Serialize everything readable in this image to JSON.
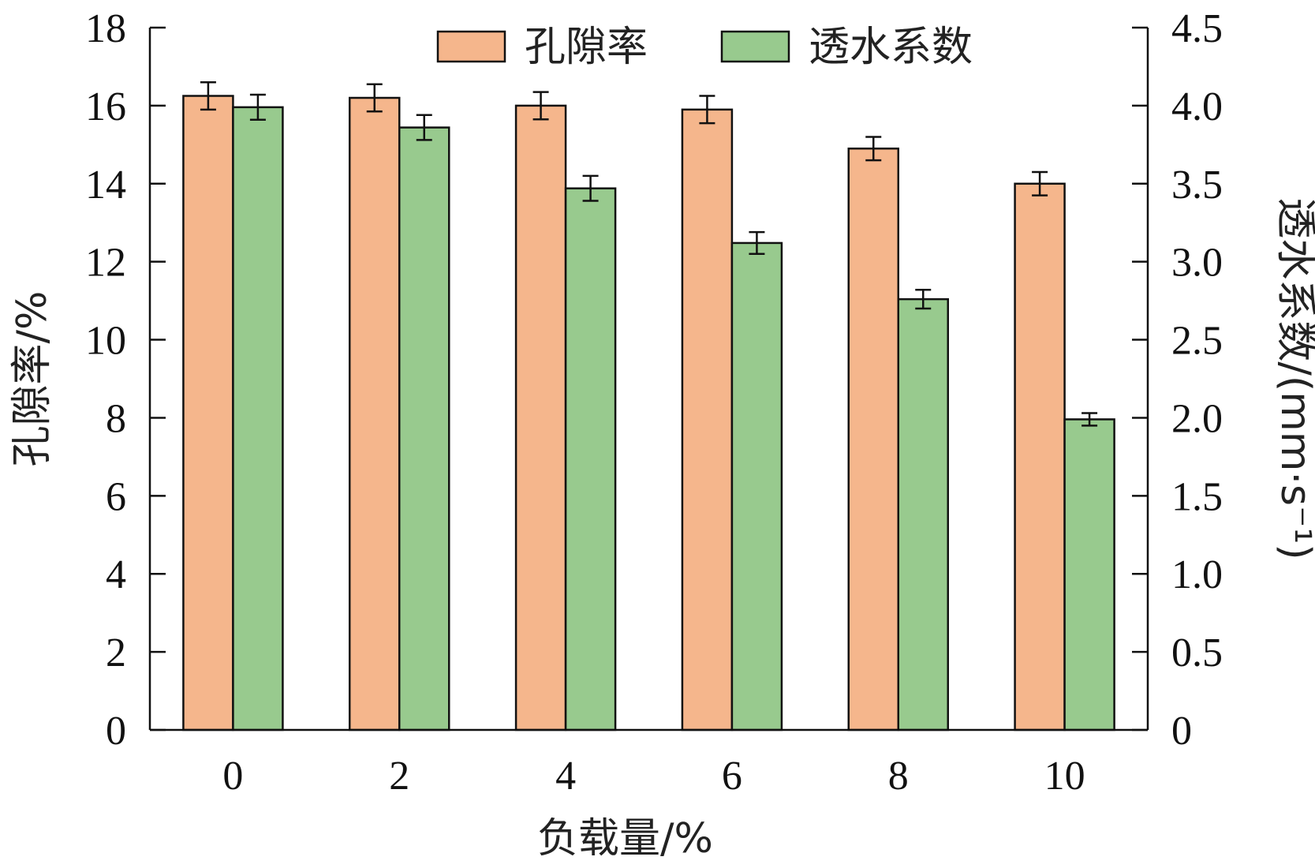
{
  "chart_data": {
    "type": "bar",
    "categories": [
      "0",
      "2",
      "4",
      "6",
      "8",
      "10"
    ],
    "xlabel": "负载量/%",
    "y_left": {
      "label": "孔隙率/%",
      "ylim": [
        0,
        18
      ],
      "ticks": [
        "0",
        "2",
        "4",
        "6",
        "8",
        "10",
        "12",
        "14",
        "16",
        "18"
      ]
    },
    "y_right": {
      "label": "透水系数/(mm·s⁻¹)",
      "ylim": [
        0,
        4.5
      ],
      "ticks": [
        "0",
        "0.5",
        "1.0",
        "1.5",
        "2.0",
        "2.5",
        "3.0",
        "3.5",
        "4.0",
        "4.5"
      ]
    },
    "series": [
      {
        "name": "孔隙率",
        "axis": "left",
        "color": "#F5B68C",
        "values": [
          16.25,
          16.2,
          16.0,
          15.9,
          14.9,
          14.0
        ],
        "errors": [
          0.35,
          0.35,
          0.35,
          0.35,
          0.3,
          0.3
        ]
      },
      {
        "name": "透水系数",
        "axis": "right",
        "color": "#98CA8E",
        "values": [
          3.99,
          3.86,
          3.47,
          3.12,
          2.76,
          1.99
        ],
        "errors": [
          0.08,
          0.08,
          0.08,
          0.07,
          0.06,
          0.04
        ]
      }
    ],
    "legend_position": "top-center",
    "grid": false
  }
}
